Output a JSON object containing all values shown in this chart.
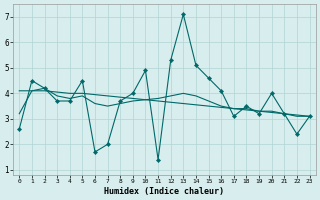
{
  "x": [
    0,
    1,
    2,
    3,
    4,
    5,
    6,
    7,
    8,
    9,
    10,
    11,
    12,
    13,
    14,
    15,
    16,
    17,
    18,
    19,
    20,
    21,
    22,
    23
  ],
  "line_main": [
    2.6,
    4.5,
    4.2,
    3.7,
    3.7,
    4.5,
    1.7,
    2.0,
    3.7,
    4.0,
    4.9,
    1.4,
    5.3,
    7.1,
    5.1,
    4.6,
    4.1,
    3.1,
    3.5,
    3.2,
    4.0,
    3.2,
    2.4,
    3.1
  ],
  "line_trend": [
    4.1,
    4.1,
    4.1,
    4.05,
    4.0,
    4.0,
    3.95,
    3.9,
    3.85,
    3.8,
    3.75,
    3.7,
    3.65,
    3.6,
    3.55,
    3.5,
    3.45,
    3.4,
    3.35,
    3.3,
    3.25,
    3.2,
    3.15,
    3.1
  ],
  "line_smooth": [
    3.2,
    4.1,
    4.2,
    3.9,
    3.8,
    3.9,
    3.6,
    3.5,
    3.6,
    3.7,
    3.75,
    3.8,
    3.9,
    4.0,
    3.9,
    3.7,
    3.5,
    3.4,
    3.4,
    3.3,
    3.3,
    3.2,
    3.1,
    3.1
  ],
  "background_color": "#d8eeee",
  "grid_color": "#b0d4d4",
  "line_color": "#006868",
  "xlabel": "Humidex (Indice chaleur)",
  "ylim": [
    0.8,
    7.5
  ],
  "xlim": [
    -0.5,
    23.5
  ],
  "yticks": [
    1,
    2,
    3,
    4,
    5,
    6,
    7
  ],
  "xticks": [
    0,
    1,
    2,
    3,
    4,
    5,
    6,
    7,
    8,
    9,
    10,
    11,
    12,
    13,
    14,
    15,
    16,
    17,
    18,
    19,
    20,
    21,
    22,
    23
  ]
}
